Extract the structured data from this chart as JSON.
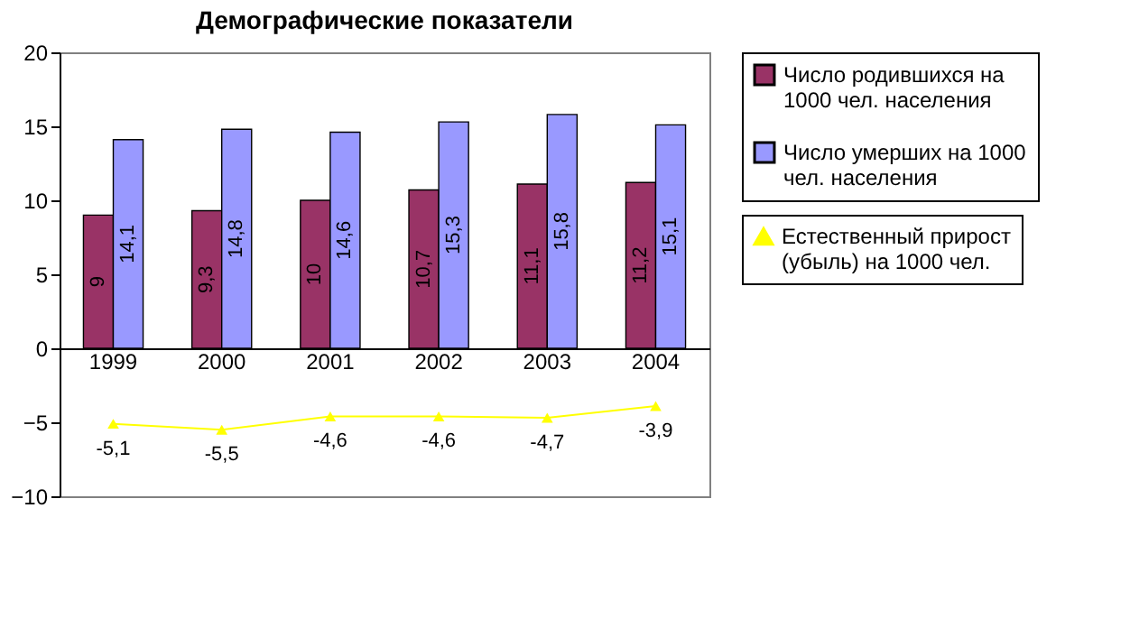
{
  "chart_data": {
    "type": "bar",
    "title": "Демографические показатели",
    "categories": [
      "1999",
      "2000",
      "2001",
      "2002",
      "2003",
      "2004"
    ],
    "series": [
      {
        "name": "Число родившихся на 1000 чел. населения",
        "color": "#993366",
        "values": [
          9,
          9.3,
          10,
          10.7,
          11.1,
          11.2
        ],
        "value_labels": [
          "9",
          "9,3",
          "10",
          "10,7",
          "11,1",
          "11,2"
        ]
      },
      {
        "name": "Число умерших на 1000 чел. населения",
        "color": "#9999ff",
        "values": [
          14.1,
          14.8,
          14.6,
          15.3,
          15.8,
          15.1
        ],
        "value_labels": [
          "14,1",
          "14,8",
          "14,6",
          "15,3",
          "15,8",
          "15,1"
        ]
      },
      {
        "name": "Естественный прирост (убыль) на 1000 чел.",
        "type": "line",
        "color": "#ffff00",
        "marker": "triangle",
        "values": [
          -5.1,
          -5.5,
          -4.6,
          -4.6,
          -4.7,
          -3.9
        ],
        "value_labels": [
          "-5,1",
          "-5,5",
          "-4,6",
          "-4,6",
          "-4,7",
          "-3,9"
        ]
      }
    ],
    "ylim": [
      -10,
      20
    ],
    "yticks": [
      -10,
      -5,
      0,
      5,
      10,
      15,
      20
    ],
    "grid": false,
    "legend": "right"
  }
}
